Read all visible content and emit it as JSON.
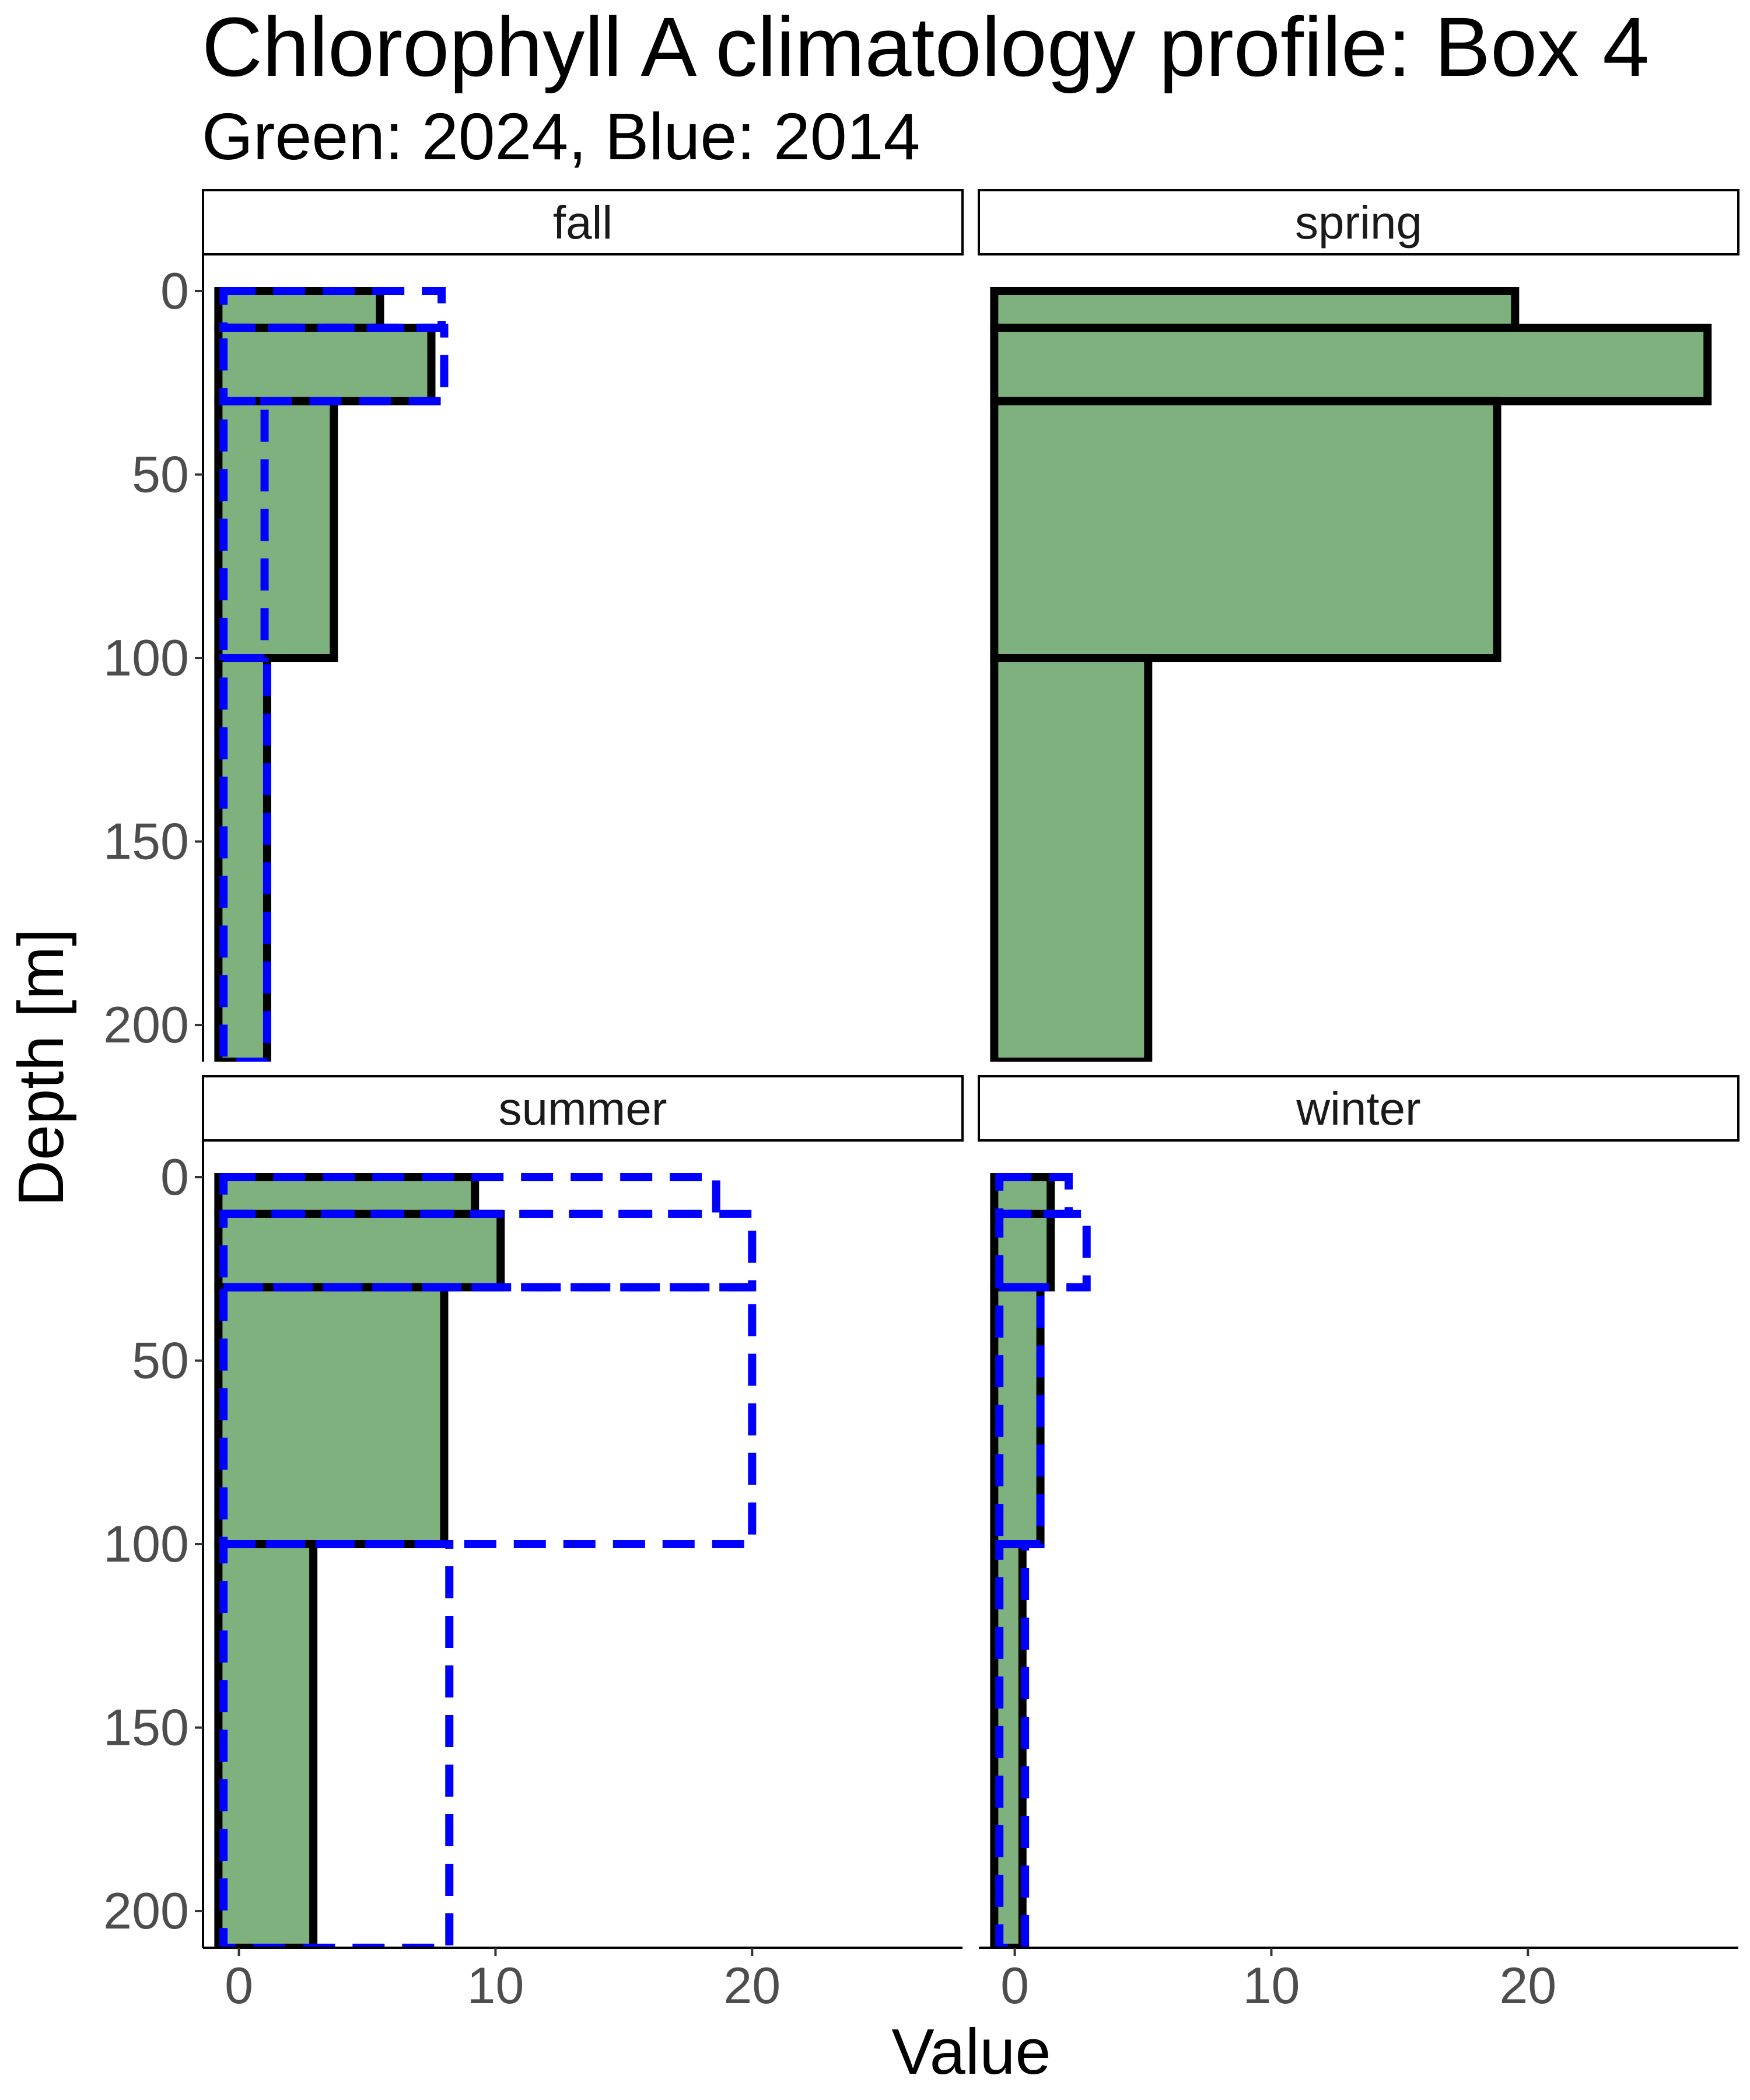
{
  "chart_data": {
    "type": "bar",
    "title": "Chlorophyll A climatology profile: Box 4",
    "subtitle": "Green: 2024, Blue: 2014",
    "xlabel": "Value",
    "ylabel": "Depth [m]",
    "xlim": [
      -1.4,
      28.2
    ],
    "ylim": [
      0,
      210
    ],
    "y_reversed": true,
    "x_ticks": [
      0,
      10,
      20
    ],
    "y_ticks": [
      0,
      50,
      100,
      150,
      200
    ],
    "grid": false,
    "layout": "2x2 facets",
    "colors": {
      "series_2024_fill": "#7fb17f",
      "series_2024_outline": "#000000",
      "series_2014_outline": "#0000ff",
      "strip_fill": "#ffffff"
    },
    "depth_layers": [
      {
        "top": 0,
        "bottom": 10
      },
      {
        "top": 10,
        "bottom": 30
      },
      {
        "top": 30,
        "bottom": 100
      },
      {
        "top": 100,
        "bottom": 210
      }
    ],
    "panels": [
      {
        "facet": "fall",
        "series": [
          {
            "year": "2024",
            "style": "green-fill",
            "values": [
              5.5,
              7.5,
              3.7,
              1.1
            ]
          },
          {
            "year": "2014",
            "style": "blue-dashed",
            "values": [
              7.9,
              8.0,
              1.0,
              1.1
            ]
          }
        ]
      },
      {
        "facet": "spring",
        "series": [
          {
            "year": "2024",
            "style": "green-fill",
            "values": [
              19.5,
              27.0,
              18.8,
              5.2
            ]
          },
          {
            "year": "2014",
            "style": "blue-dashed",
            "values": [
              null,
              null,
              null,
              null
            ]
          }
        ]
      },
      {
        "facet": "summer",
        "series": [
          {
            "year": "2024",
            "style": "green-fill",
            "values": [
              9.2,
              10.2,
              8.0,
              2.9
            ]
          },
          {
            "year": "2014",
            "style": "blue-dashed",
            "values": [
              18.6,
              20.0,
              20.0,
              8.2
            ]
          }
        ]
      },
      {
        "facet": "winter",
        "series": [
          {
            "year": "2024",
            "style": "green-fill",
            "values": [
              1.4,
              1.4,
              1.0,
              0.3
            ]
          },
          {
            "year": "2014",
            "style": "blue-dashed",
            "values": [
              2.1,
              2.8,
              1.0,
              0.4
            ]
          }
        ]
      }
    ]
  }
}
